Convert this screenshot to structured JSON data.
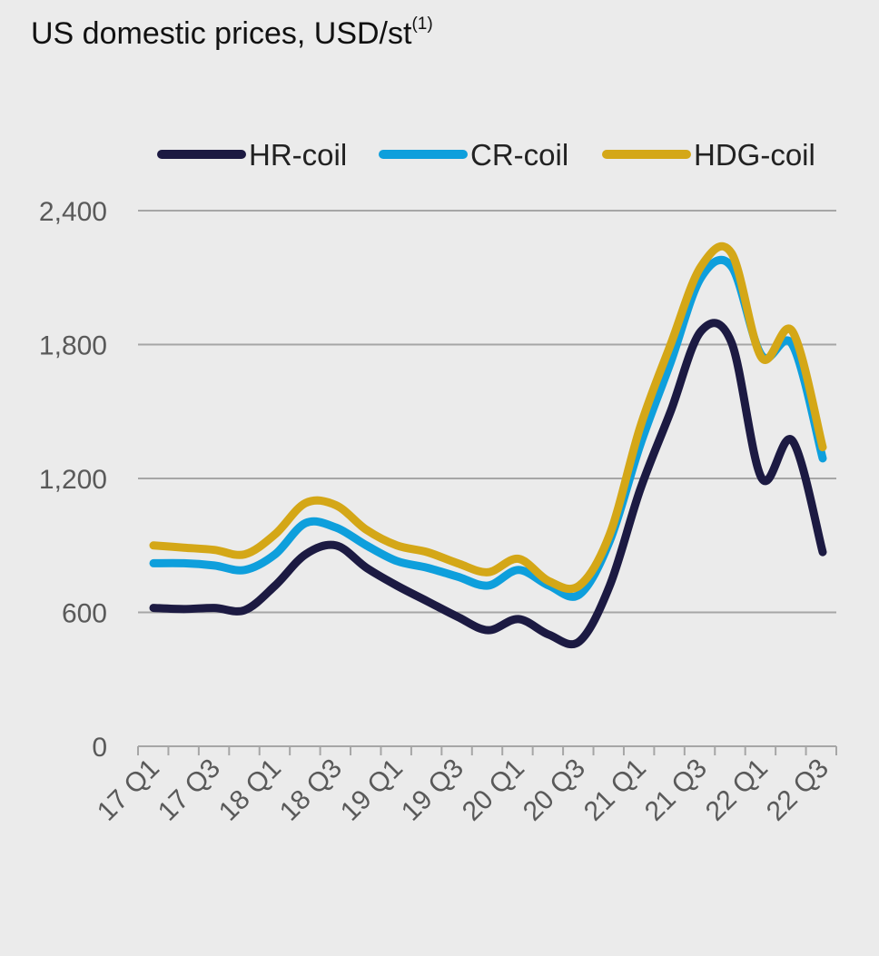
{
  "chart_data": {
    "type": "line",
    "title": "US domestic prices, USD/st",
    "title_superscript": "(1)",
    "xlabel": "",
    "ylabel": "",
    "ylim": [
      0,
      2400
    ],
    "yticks": [
      0,
      600,
      1200,
      1800,
      2400
    ],
    "ytick_labels": [
      "0",
      "600",
      "1,200",
      "1,800",
      "2,400"
    ],
    "categories": [
      "17 Q1",
      "17 Q2",
      "17 Q3",
      "17 Q4",
      "18 Q1",
      "18 Q2",
      "18 Q3",
      "18 Q4",
      "19 Q1",
      "19 Q2",
      "19 Q3",
      "19 Q4",
      "20 Q1",
      "20 Q2",
      "20 Q3",
      "20 Q4",
      "21 Q1",
      "21 Q2",
      "21 Q3",
      "21 Q4",
      "22 Q1",
      "22 Q2",
      "22 Q3"
    ],
    "xtick_labels": [
      "17 Q1",
      "17 Q3",
      "18 Q1",
      "18 Q3",
      "19 Q1",
      "19 Q3",
      "20 Q1",
      "20 Q3",
      "21 Q1",
      "21 Q3",
      "22 Q1",
      "22 Q3"
    ],
    "grid": "horizontal",
    "legend_position": "top",
    "series": [
      {
        "name": "HR-coil",
        "color": "#1c1a42",
        "values": [
          620,
          615,
          620,
          610,
          720,
          860,
          900,
          800,
          720,
          650,
          580,
          520,
          570,
          500,
          470,
          720,
          1150,
          1500,
          1860,
          1810,
          1200,
          1370,
          870
        ]
      },
      {
        "name": "CR-coil",
        "color": "#0e9fdc",
        "values": [
          820,
          820,
          810,
          790,
          860,
          1000,
          980,
          900,
          830,
          800,
          760,
          720,
          790,
          720,
          680,
          920,
          1350,
          1720,
          2100,
          2150,
          1750,
          1800,
          1290
        ]
      },
      {
        "name": "HDG-coil",
        "color": "#d4a717",
        "values": [
          900,
          890,
          880,
          860,
          950,
          1090,
          1080,
          970,
          900,
          870,
          820,
          780,
          840,
          740,
          720,
          950,
          1430,
          1800,
          2150,
          2210,
          1740,
          1860,
          1340
        ]
      }
    ]
  }
}
